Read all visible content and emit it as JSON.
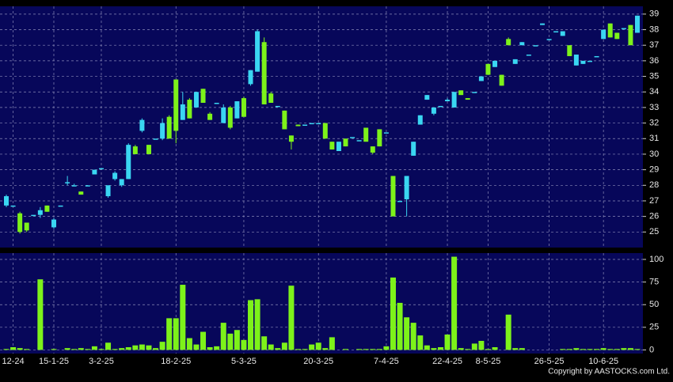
{
  "chart_data": [
    {
      "type": "candlestick",
      "categories": [
        null,
        "12-24",
        null,
        null,
        null,
        null,
        null,
        "15-1-25",
        null,
        null,
        null,
        null,
        null,
        null,
        "3-2-25",
        null,
        null,
        null,
        null,
        null,
        null,
        null,
        null,
        null,
        null,
        "18-2-25",
        null,
        null,
        null,
        null,
        null,
        null,
        null,
        null,
        null,
        "5-3-25",
        null,
        null,
        null,
        null,
        null,
        null,
        null,
        null,
        null,
        null,
        "20-3-25",
        null,
        null,
        null,
        null,
        null,
        null,
        null,
        null,
        null,
        "7-4-25",
        null,
        null,
        null,
        null,
        null,
        null,
        null,
        null,
        "22-4-25",
        null,
        null,
        null,
        null,
        null,
        "8-5-25",
        null,
        null,
        null,
        null,
        null,
        null,
        null,
        null,
        "26-5-25",
        null,
        null,
        null,
        null,
        null,
        null,
        null,
        "10-6-25",
        null,
        null,
        null,
        null,
        null
      ],
      "open": [
        26.7,
        26.7,
        26.2,
        25.6,
        26.1,
        26.1,
        26.7,
        25.3,
        26.7,
        28.2,
        28.0,
        27.6,
        28.0,
        28.7,
        29.1,
        27.3,
        28.4,
        28.0,
        28.4,
        30.5,
        31.5,
        30.6,
        31.0,
        31.0,
        32.4,
        34.8,
        32.2,
        33.5,
        33.0,
        34.2,
        32.6,
        33.3,
        32.0,
        33.0,
        32.3,
        33.6,
        34.5,
        35.3,
        37.2,
        33.9,
        33.1,
        32.8,
        31.2,
        31.9,
        31.9,
        32.0,
        32.0,
        32.0,
        30.8,
        30.2,
        31.0,
        31.1,
        30.9,
        31.7,
        30.5,
        31.6,
        31.4,
        28.6,
        27.0,
        27.1,
        29.9,
        31.9,
        33.5,
        32.6,
        33.1,
        33.4,
        33.0,
        34.1,
        33.6,
        34.0,
        34.7,
        35.8,
        35.6,
        35.1,
        37.4,
        35.8,
        37.0,
        36.4,
        37.0,
        38.3,
        37.4,
        37.9,
        37.6,
        37.0,
        35.7,
        35.8,
        36.0,
        36.3,
        37.4,
        38.4,
        37.8,
        38.1,
        38.3,
        37.8
      ],
      "high": [
        27.4,
        26.7,
        26.3,
        25.6,
        26.1,
        26.6,
        26.7,
        25.9,
        26.7,
        28.6,
        28.1,
        27.6,
        28.0,
        29.0,
        29.1,
        28.0,
        28.9,
        28.4,
        30.7,
        30.6,
        32.3,
        30.6,
        31.0,
        32.3,
        32.5,
        34.8,
        34.0,
        33.6,
        34.0,
        34.2,
        32.7,
        33.3,
        33.2,
        33.1,
        33.4,
        33.7,
        35.4,
        38.0,
        37.5,
        34.0,
        33.1,
        32.8,
        31.2,
        31.9,
        31.9,
        32.0,
        32.0,
        32.0,
        30.8,
        30.8,
        31.0,
        31.1,
        30.9,
        31.7,
        30.5,
        31.6,
        31.4,
        28.6,
        27.0,
        28.6,
        30.8,
        32.5,
        33.8,
        33.0,
        33.1,
        33.6,
        34.0,
        34.1,
        33.6,
        34.0,
        35.0,
        35.8,
        36.0,
        35.1,
        37.5,
        36.1,
        37.2,
        36.4,
        37.0,
        38.4,
        37.4,
        37.9,
        37.9,
        37.0,
        36.4,
        36.0,
        36.0,
        36.3,
        38.0,
        38.4,
        37.8,
        38.1,
        38.3,
        38.9
      ],
      "low": [
        26.6,
        26.7,
        24.9,
        25.0,
        26.1,
        25.9,
        26.3,
        25.2,
        26.7,
        28.0,
        28.0,
        27.4,
        28.0,
        28.7,
        29.1,
        27.2,
        28.3,
        27.9,
        28.4,
        30.0,
        31.4,
        30.0,
        31.0,
        30.9,
        31.0,
        30.7,
        32.2,
        32.3,
        33.0,
        33.3,
        32.2,
        33.3,
        32.0,
        31.6,
        32.3,
        32.4,
        34.4,
        35.3,
        33.2,
        33.3,
        33.1,
        31.6,
        30.3,
        31.8,
        31.9,
        32.0,
        32.0,
        31.0,
        30.3,
        30.2,
        30.5,
        31.1,
        30.9,
        30.8,
        30.0,
        30.5,
        31.4,
        26.0,
        27.0,
        26.0,
        29.9,
        31.9,
        33.5,
        32.5,
        33.1,
        33.4,
        33.0,
        33.8,
        33.5,
        34.0,
        34.7,
        35.1,
        35.6,
        34.4,
        37.0,
        35.8,
        37.0,
        36.4,
        37.0,
        38.3,
        37.4,
        37.9,
        37.6,
        36.3,
        35.7,
        35.8,
        36.0,
        36.3,
        37.4,
        37.5,
        37.4,
        38.1,
        37.0,
        37.8
      ],
      "close": [
        27.3,
        26.7,
        25.0,
        25.1,
        26.1,
        26.4,
        26.3,
        25.8,
        26.7,
        28.2,
        28.0,
        27.4,
        28.0,
        29.0,
        29.1,
        28.0,
        28.8,
        28.4,
        30.6,
        30.0,
        32.2,
        30.0,
        31.0,
        32.0,
        31.0,
        31.5,
        33.2,
        32.3,
        34.0,
        33.3,
        32.2,
        33.3,
        33.0,
        31.7,
        33.4,
        32.4,
        35.4,
        37.9,
        33.2,
        33.3,
        33.1,
        31.6,
        30.8,
        31.8,
        31.9,
        32.0,
        32.0,
        31.0,
        30.3,
        30.8,
        30.5,
        31.1,
        30.9,
        30.8,
        30.1,
        30.5,
        31.4,
        26.0,
        27.0,
        28.6,
        30.8,
        32.5,
        33.8,
        33.0,
        33.1,
        33.5,
        34.0,
        33.8,
        33.5,
        34.0,
        35.0,
        35.1,
        36.0,
        34.4,
        37.0,
        36.1,
        37.2,
        36.4,
        37.0,
        38.4,
        37.4,
        37.9,
        37.9,
        36.3,
        36.4,
        36.0,
        36.0,
        36.3,
        38.0,
        37.5,
        37.4,
        38.1,
        37.0,
        38.9
      ],
      "up_color": "#3ad6f2",
      "down_color": "#7df21a",
      "ylim": [
        24,
        39.5
      ],
      "yticks": [
        25,
        26,
        27,
        28,
        29,
        30,
        31,
        32,
        33,
        34,
        35,
        36,
        37,
        38,
        39
      ],
      "grid": true
    },
    {
      "type": "bar",
      "values": [
        1,
        3,
        2,
        1,
        0,
        78,
        0,
        1,
        0,
        2,
        1,
        2,
        1,
        4,
        1,
        8,
        1,
        2,
        3,
        5,
        6,
        5,
        2,
        9,
        35,
        35,
        72,
        13,
        6,
        20,
        3,
        4,
        30,
        18,
        22,
        11,
        55,
        56,
        15,
        6,
        2,
        8,
        71,
        1,
        1,
        6,
        8,
        2,
        14,
        0,
        1,
        0,
        1,
        1,
        1,
        1,
        4,
        80,
        52,
        36,
        30,
        16,
        5,
        2,
        3,
        17,
        103,
        2,
        1,
        7,
        10,
        1,
        3,
        0,
        39,
        2,
        2,
        0,
        0,
        0,
        0,
        0,
        1,
        1,
        2,
        1,
        1,
        1,
        2,
        1,
        1,
        2,
        2,
        1
      ],
      "color": "#7df21a",
      "ylim": [
        -4,
        107
      ],
      "yticks": [
        0,
        25,
        50,
        75,
        100
      ],
      "grid": true
    }
  ],
  "copyright": "Copyright by AASTOCKS.com Ltd."
}
